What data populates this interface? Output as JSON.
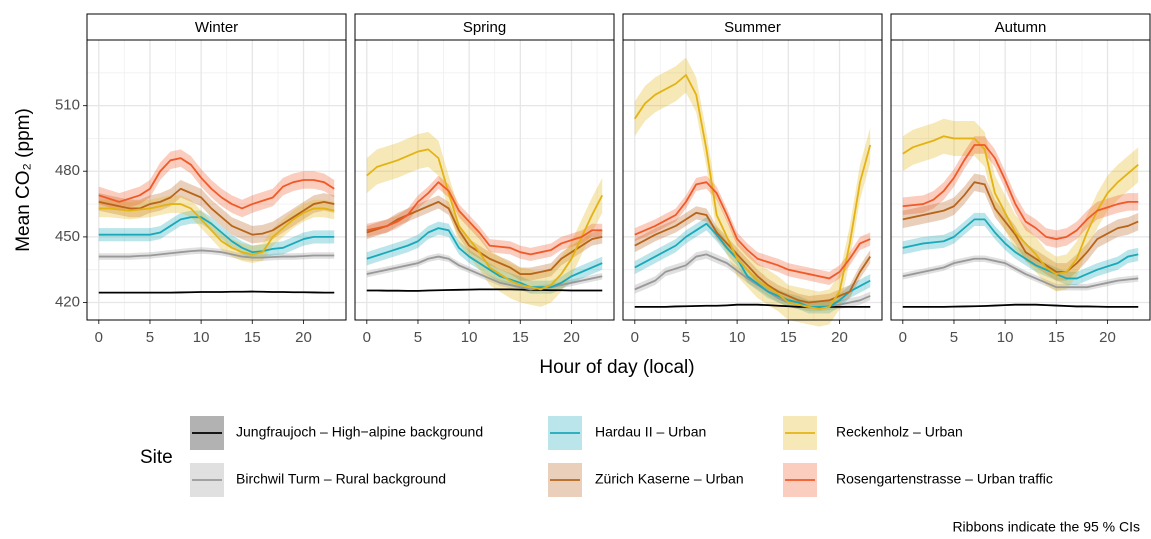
{
  "chart_data": {
    "type": "line",
    "facets": [
      "Winter",
      "Spring",
      "Summer",
      "Autumn"
    ],
    "xlabel": "Hour of day (local)",
    "ylabel": "Mean CO₂ (ppm)",
    "legend_title": "Site",
    "caption": "Ribbons indicate the 95 % CIs",
    "x": [
      0,
      1,
      2,
      3,
      4,
      5,
      6,
      7,
      8,
      9,
      10,
      11,
      12,
      13,
      14,
      15,
      16,
      17,
      18,
      19,
      20,
      21,
      22,
      23
    ],
    "xlim": [
      -1.15,
      24.15
    ],
    "xticks": [
      0,
      5,
      10,
      15,
      20
    ],
    "xminor": [
      2.5,
      7.5,
      12.5,
      17.5,
      22.5
    ],
    "ylim": [
      412,
      540
    ],
    "yticks": [
      420,
      450,
      480,
      510
    ],
    "yminor": [
      435,
      465,
      495,
      525
    ],
    "grid": true,
    "series": [
      {
        "name": "Jungfraujoch – High−alpine background",
        "color": "#000000",
        "ci": [
          0.3,
          0.3,
          0.3,
          0.3
        ],
        "values": [
          [
            424.5,
            424.5,
            424.5,
            424.5,
            424.5,
            424.5,
            424.5,
            424.5,
            424.6,
            424.7,
            424.8,
            424.8,
            424.8,
            424.9,
            424.9,
            425,
            424.9,
            424.8,
            424.8,
            424.7,
            424.7,
            424.6,
            424.5,
            424.5
          ],
          [
            425.5,
            425.5,
            425.4,
            425.4,
            425.3,
            425.3,
            425.5,
            425.6,
            425.7,
            425.8,
            425.9,
            426,
            426,
            426,
            426,
            425.9,
            425.8,
            425.7,
            425.6,
            425.6,
            425.5,
            425.5,
            425.5,
            425.5
          ],
          [
            418,
            418,
            418,
            418,
            418.2,
            418.3,
            418.4,
            418.5,
            418.5,
            418.7,
            419,
            419,
            419,
            418.8,
            418.5,
            418.3,
            418,
            418,
            418,
            418,
            418,
            418,
            418,
            418
          ],
          [
            418,
            418,
            418,
            418,
            418,
            418.1,
            418.2,
            418.3,
            418.4,
            418.6,
            418.8,
            419,
            419,
            419,
            418.8,
            418.6,
            418.4,
            418.2,
            418.2,
            418.1,
            418,
            418,
            418,
            418
          ]
        ]
      },
      {
        "name": "Birchwil Turm – Rural background",
        "color": "#999999",
        "ci": [
          1.5,
          1.5,
          2,
          1.5
        ],
        "values": [
          [
            441,
            441,
            441,
            441,
            441.3,
            441.5,
            442,
            442.5,
            443,
            443.5,
            443.8,
            443.5,
            443,
            442,
            441,
            440.5,
            440.5,
            440.8,
            441,
            441,
            441.2,
            441.5,
            441.5,
            441.5
          ],
          [
            433,
            434,
            435,
            436,
            437,
            438,
            440,
            441,
            440,
            437,
            435,
            433,
            431,
            429,
            428,
            427,
            426,
            426.5,
            427,
            428,
            429,
            430,
            431,
            432
          ],
          [
            426,
            428,
            430,
            434,
            435.5,
            437,
            441,
            442,
            440,
            438,
            434.5,
            431,
            428,
            425,
            422,
            420,
            419,
            418,
            418,
            418.5,
            419,
            420,
            421,
            423
          ],
          [
            432,
            433,
            434,
            435,
            436,
            438,
            439,
            440,
            440,
            439,
            438,
            435.5,
            433,
            431,
            429,
            427,
            427,
            427,
            427,
            428,
            429,
            430,
            430.5,
            431
          ]
        ]
      },
      {
        "name": "Hardau II – Urban",
        "color": "#1aa9ba",
        "ci": [
          3,
          3,
          3,
          3
        ],
        "values": [
          [
            451,
            451,
            451,
            451,
            451,
            451,
            452,
            455,
            458,
            459,
            459,
            456,
            452,
            448,
            445,
            443,
            443.5,
            444.5,
            445,
            447,
            449,
            450,
            450,
            450
          ],
          [
            440,
            441.5,
            443,
            444.5,
            446,
            448,
            452,
            454,
            453,
            445,
            441,
            438,
            435,
            432,
            430.5,
            429,
            427,
            427,
            427,
            429,
            432,
            434,
            436,
            438
          ],
          [
            436,
            438.5,
            441,
            443.5,
            446,
            450,
            453,
            456,
            451,
            445,
            440,
            432,
            428.5,
            425,
            423,
            421,
            420,
            418,
            418,
            418,
            421,
            425,
            427.5,
            430
          ],
          [
            445,
            446,
            447,
            447.5,
            448,
            450,
            454,
            458,
            458,
            452,
            447,
            443,
            440,
            437,
            435,
            433,
            431,
            431,
            433,
            435,
            436.5,
            438,
            441,
            442
          ]
        ]
      },
      {
        "name": "Zürich Kaserne – Urban",
        "color": "#b8651c",
        "ci": [
          4,
          3,
          3,
          4
        ],
        "values": [
          [
            466,
            465,
            464,
            463,
            463,
            465,
            466,
            468,
            472,
            470,
            468,
            463,
            459,
            455,
            453,
            451,
            451.5,
            453,
            456,
            459,
            462,
            465,
            466,
            465
          ],
          [
            452,
            453.5,
            455,
            458,
            460,
            462,
            464,
            466,
            463,
            453,
            446,
            443,
            440,
            438,
            436,
            433,
            433,
            434,
            435,
            440,
            443,
            446,
            449,
            450
          ],
          [
            446,
            448.5,
            451,
            453,
            455,
            458,
            461,
            460,
            452,
            447,
            442,
            437,
            432,
            428,
            425,
            423,
            421,
            420,
            420.5,
            421,
            423,
            425,
            434,
            441
          ],
          [
            458,
            459,
            460,
            461,
            462,
            464,
            469,
            475,
            474,
            463,
            457,
            451,
            443,
            440,
            437,
            434,
            434,
            438,
            443,
            449,
            451.5,
            454,
            455,
            457
          ]
        ]
      },
      {
        "name": "Reckenholz – Urban",
        "color": "#e3b314",
        "ci": [
          4,
          8,
          8,
          8
        ],
        "values": [
          [
            463,
            463,
            462.5,
            462,
            462.5,
            463,
            464,
            465,
            465,
            463,
            458,
            453,
            448,
            445,
            443,
            442,
            443,
            450,
            454,
            458,
            461,
            463,
            463,
            462
          ],
          [
            478,
            482,
            483.5,
            485,
            487,
            489,
            490,
            486,
            470,
            455,
            449,
            443,
            436,
            433,
            430,
            428,
            427,
            426,
            428,
            433,
            440,
            450,
            460,
            469
          ],
          [
            504,
            511,
            515,
            517.5,
            520,
            524,
            515,
            490,
            460,
            450,
            440,
            435,
            430,
            427,
            424,
            420,
            419,
            418,
            417,
            418,
            425,
            447,
            475,
            492
          ],
          [
            488,
            491,
            492.5,
            494,
            496,
            495,
            495,
            495,
            490,
            470,
            461,
            452,
            447,
            442,
            436,
            433,
            434,
            440,
            452,
            462,
            470,
            475,
            479,
            483
          ]
        ]
      },
      {
        "name": "Rosengartenstrasse – Urban traffic",
        "color": "#f05a28",
        "ci": [
          4,
          3,
          3,
          4
        ],
        "values": [
          [
            469,
            467.5,
            466,
            467.5,
            469,
            472,
            480,
            485,
            486,
            483,
            477,
            472,
            468,
            465,
            463,
            465,
            466.5,
            468,
            473,
            475,
            476,
            476,
            475,
            472
          ],
          [
            453,
            454,
            455,
            457,
            460,
            466,
            470,
            475,
            471,
            462,
            457,
            452,
            446,
            445.5,
            445,
            443,
            442,
            443,
            444,
            447,
            448.5,
            450,
            453,
            453
          ],
          [
            451,
            453,
            455,
            457.5,
            460,
            466,
            474,
            475,
            470,
            460,
            449,
            444,
            440,
            438.5,
            437,
            435,
            434,
            433,
            432,
            431,
            434,
            440,
            447,
            449
          ],
          [
            464,
            464.5,
            465,
            467,
            471,
            477,
            485,
            492,
            492,
            486,
            476,
            465,
            457,
            454,
            450,
            449,
            450,
            453,
            458,
            462,
            463.5,
            465,
            466,
            466
          ]
        ]
      }
    ]
  }
}
